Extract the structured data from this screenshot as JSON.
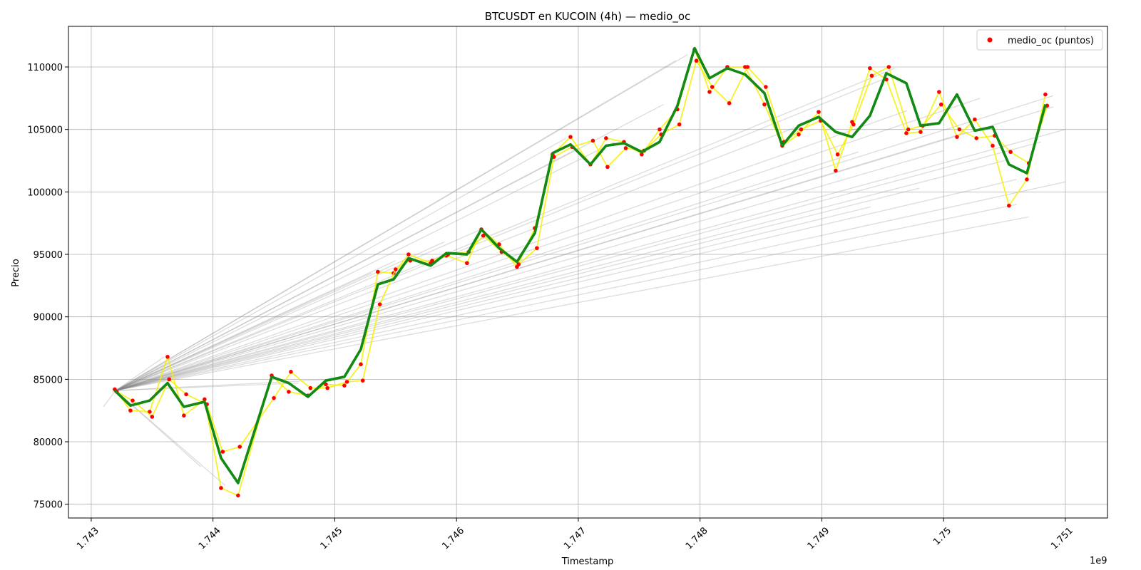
{
  "chart_data": {
    "type": "line",
    "title": "BTCUSDT en KUCOIN (4h) — medio_oc",
    "x_label": "Timestamp",
    "y_label": "Precio",
    "x_offset_label": "1e9",
    "xlim": [
      1.742813,
      1.751346
    ],
    "ylim": [
      73900,
      113250
    ],
    "xticks": [
      1.743,
      1.744,
      1.745,
      1.746,
      1.747,
      1.748,
      1.749,
      1.75,
      1.751
    ],
    "yticks": [
      75000,
      80000,
      85000,
      90000,
      95000,
      100000,
      105000,
      110000
    ],
    "grid": true,
    "legend": "upper right",
    "fan": {
      "color": "#808080",
      "origin": [
        1.7432,
        84100
      ],
      "x": [
        1.7479,
        1.7478,
        1.7496,
        1.7495,
        1.7477,
        1.7469,
        1.747,
        1.7473,
        1.7489,
        1.7493,
        1.7503,
        1.7509,
        1.7509,
        1.751,
        1.7508,
        1.7506,
        1.7506,
        1.7502,
        1.75,
        1.7498,
        1.7494,
        1.7462,
        1.7459,
        1.7455,
        1.7453,
        1.745,
        1.7447,
        1.7441,
        1.7439,
        1.7436,
        1.7431,
        1.751,
        1.7507,
        1.7505,
        1.7497
      ],
      "values": [
        111000,
        110500,
        109900,
        109000,
        107000,
        104300,
        103500,
        104000,
        105600,
        103200,
        107500,
        107700,
        106800,
        105000,
        104000,
        101000,
        99000,
        104800,
        103300,
        100300,
        98800,
        97000,
        96000,
        94500,
        93500,
        85000,
        84700,
        76500,
        78000,
        86800,
        82800,
        100800,
        98000,
        102500,
        106500
      ]
    },
    "series": [
      {
        "name": "medio_oc (puntos)",
        "color": "#ff0000",
        "line_color": "#f5f000",
        "x": [
          1.743193,
          1.743322,
          1.74348,
          1.743627,
          1.743761,
          1.743931,
          1.744066,
          1.744206,
          1.744482,
          1.744622,
          1.74478,
          1.744927,
          1.745079,
          1.745214,
          1.745354,
          1.745483,
          1.745606,
          1.745788,
          1.745917,
          1.746086,
          1.746204,
          1.74635,
          1.746496,
          1.746643,
          1.746789,
          1.746936,
          1.7471,
          1.747228,
          1.747375,
          1.747521,
          1.747668,
          1.747814,
          1.747955,
          1.748078,
          1.748224,
          1.74837,
          1.748529,
          1.748675,
          1.74881,
          1.748974,
          1.749114,
          1.749249,
          1.749395,
          1.74953,
          1.749694,
          1.749811,
          1.749963,
          1.75011,
          1.750256,
          1.750403,
          1.750537,
          1.750684,
          1.750836
        ],
        "values": [
          84200,
          82500,
          82400,
          86800,
          82100,
          83400,
          76300,
          75700,
          85300,
          84000,
          83700,
          84600,
          84500,
          86200,
          93600,
          93500,
          95000,
          94300,
          94900,
          94300,
          97000,
          95800,
          94000,
          97100,
          103000,
          104400,
          102200,
          104300,
          104000,
          103000,
          105000,
          106600,
          111400,
          108000,
          110000,
          110000,
          107000,
          103700,
          104600,
          106400,
          101700,
          105600,
          109900,
          109000,
          104700,
          104800,
          108000,
          104400,
          105800,
          103700,
          98900,
          101000,
          107800
        ]
      },
      {
        "color": "#f5f000",
        "marker_color": "#ff0000",
        "x": [
          1.74321,
          1.74334,
          1.7435,
          1.74364,
          1.74378,
          1.74395,
          1.74408,
          1.74422,
          1.7445,
          1.74464,
          1.7448,
          1.74494,
          1.7451,
          1.74523,
          1.74537,
          1.7455,
          1.74562,
          1.7458,
          1.74593,
          1.7461,
          1.74622,
          1.74637,
          1.74651,
          1.74666,
          1.7468,
          1.74695,
          1.74712,
          1.74724,
          1.74739,
          1.74754,
          1.74768,
          1.74783,
          1.74797,
          1.7481,
          1.74824,
          1.74839,
          1.74854,
          1.74869,
          1.74883,
          1.74899,
          1.74913,
          1.74926,
          1.74941,
          1.74955,
          1.74971,
          1.74983,
          1.74998,
          1.75013,
          1.75027,
          1.75042,
          1.75055,
          1.7507,
          1.75085
        ],
        "values": [
          84000,
          83300,
          82000,
          85000,
          83800,
          83000,
          79200,
          79600,
          83500,
          85600,
          84300,
          84300,
          84800,
          84900,
          91000,
          93800,
          94500,
          94500,
          95000,
          95200,
          96500,
          95200,
          94200,
          95500,
          102800,
          103600,
          104100,
          102000,
          103500,
          103300,
          104600,
          105400,
          110500,
          108400,
          107100,
          110000,
          108400,
          104000,
          105000,
          105700,
          103000,
          105400,
          109300,
          110000,
          105000,
          105300,
          107000,
          105000,
          104300,
          104500,
          103200,
          102300,
          106900
        ]
      },
      {
        "color": "#138a13",
        "x": [
          1.743193,
          1.743322,
          1.74348,
          1.743627,
          1.743761,
          1.743931,
          1.744066,
          1.744206,
          1.744482,
          1.744622,
          1.74478,
          1.744927,
          1.745079,
          1.745214,
          1.745354,
          1.745483,
          1.745606,
          1.745788,
          1.745917,
          1.746086,
          1.746204,
          1.74635,
          1.746496,
          1.746643,
          1.746789,
          1.746936,
          1.7471,
          1.747228,
          1.747375,
          1.747521,
          1.747668,
          1.747814,
          1.747955,
          1.748078,
          1.748224,
          1.74837,
          1.748529,
          1.748675,
          1.74881,
          1.748974,
          1.749114,
          1.749249,
          1.749395,
          1.74953,
          1.749694,
          1.749811,
          1.749963,
          1.75011,
          1.750256,
          1.750403,
          1.750537,
          1.750684,
          1.750836
        ],
        "values": [
          84100,
          82900,
          83300,
          84700,
          82800,
          83200,
          78700,
          76700,
          85200,
          84700,
          83600,
          84900,
          85200,
          87400,
          92600,
          93000,
          94700,
          94100,
          95100,
          95000,
          97000,
          95500,
          94400,
          96700,
          103100,
          103800,
          102200,
          103700,
          103900,
          103200,
          104000,
          106900,
          111500,
          109100,
          109900,
          109400,
          107900,
          103700,
          105300,
          106000,
          104800,
          104400,
          106100,
          109500,
          108700,
          105300,
          105500,
          107800,
          104900,
          105200,
          102200,
          101500,
          107000
        ]
      }
    ]
  }
}
